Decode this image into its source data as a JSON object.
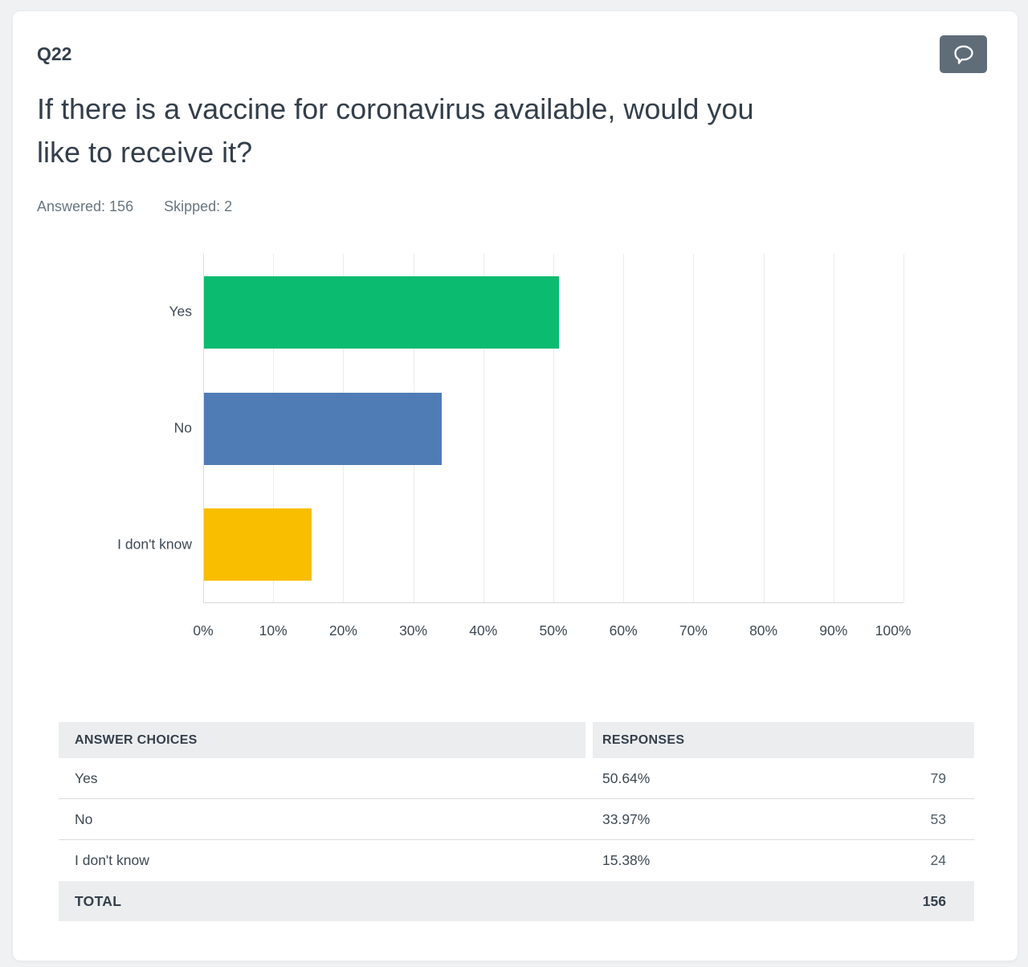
{
  "question": {
    "number": "Q22",
    "title_lines": [
      "If there is a vaccine for coronavirus available, would you",
      "like to receive it?"
    ],
    "answered": "Answered: 156",
    "skipped": "Skipped: 2"
  },
  "icons": {
    "comment_button": "speech-bubble"
  },
  "chart_data": {
    "type": "bar",
    "orientation": "horizontal",
    "title": "If there is a vaccine for coronavirus available, would you like to receive it?",
    "categories": [
      "Yes",
      "No",
      "I don't know"
    ],
    "values": [
      50.64,
      33.97,
      15.38
    ],
    "bar_colors": [
      "#0abb70",
      "#507cb5",
      "#f9be00"
    ],
    "x_tick_labels": [
      "0%",
      "10%",
      "20%",
      "30%",
      "40%",
      "50%",
      "60%",
      "70%",
      "80%",
      "90%",
      "100%"
    ],
    "xlim": [
      0,
      100
    ],
    "grid": true,
    "legend": false
  },
  "table": {
    "headers": [
      "ANSWER CHOICES",
      "RESPONSES"
    ],
    "rows": [
      {
        "choice": "Yes",
        "percent": "50.64%",
        "count": "79"
      },
      {
        "choice": "No",
        "percent": "33.97%",
        "count": "53"
      },
      {
        "choice": "I don't know",
        "percent": "15.38%",
        "count": "24"
      }
    ],
    "total": {
      "label": "TOTAL",
      "value": "156"
    }
  },
  "colors": {
    "bar_green": "#0abb70",
    "bar_blue": "#507cb5",
    "bar_yellow": "#f9be00",
    "button_slate": "#5f6d78",
    "page_background": "#f0f1f2",
    "text_dark": "#343f4b",
    "text_muted": "#69767f"
  }
}
